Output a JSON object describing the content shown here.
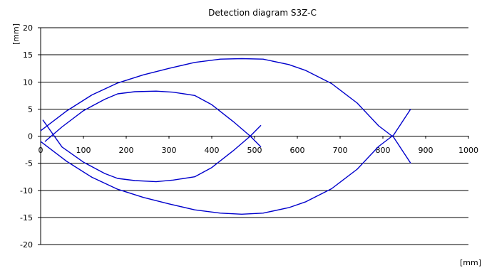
{
  "chart_data": {
    "type": "line",
    "title": "Detection diagram S3Z-C",
    "xlabel": "[mm]",
    "ylabel": "[mm]",
    "xlim": [
      0,
      1000
    ],
    "ylim": [
      -20,
      20
    ],
    "x_ticks": [
      0,
      100,
      200,
      300,
      400,
      500,
      600,
      700,
      800,
      900,
      1000
    ],
    "y_ticks": [
      -20,
      -15,
      -10,
      -5,
      0,
      5,
      10,
      15,
      20
    ],
    "grid": "horizontal",
    "legend": "none",
    "line_color": "#0000cc",
    "series": [
      {
        "x": [
          0,
          60,
          120,
          180,
          240,
          300,
          360,
          420,
          470,
          520,
          580,
          620,
          680,
          740,
          790,
          825,
          865
        ],
        "y": [
          1,
          4.6,
          7.6,
          9.8,
          11.3,
          12.5,
          13.6,
          14.2,
          14.3,
          14.2,
          13.2,
          12.1,
          9.7,
          6.1,
          1.9,
          -0.2,
          -5
        ]
      },
      {
        "x": [
          0,
          60,
          120,
          180,
          240,
          300,
          360,
          420,
          470,
          520,
          580,
          620,
          680,
          740,
          790,
          825,
          865
        ],
        "y": [
          -1,
          -4.6,
          -7.6,
          -9.8,
          -11.3,
          -12.5,
          -13.6,
          -14.2,
          -14.4,
          -14.2,
          -13.2,
          -12.1,
          -9.7,
          -6.1,
          -1.9,
          0.2,
          5
        ]
      },
      {
        "x": [
          10,
          50,
          100,
          150,
          180,
          220,
          270,
          310,
          360,
          400,
          450,
          490,
          515
        ],
        "y": [
          -1,
          1.7,
          4.7,
          6.8,
          7.8,
          8.2,
          8.3,
          8.1,
          7.5,
          5.8,
          2.7,
          0,
          -2
        ]
      },
      {
        "x": [
          5,
          50,
          100,
          150,
          180,
          220,
          270,
          310,
          360,
          400,
          450,
          490,
          515
        ],
        "y": [
          3,
          -2,
          -4.8,
          -6.9,
          -7.8,
          -8.2,
          -8.4,
          -8.1,
          -7.5,
          -5.8,
          -2.7,
          0,
          2
        ]
      }
    ]
  }
}
